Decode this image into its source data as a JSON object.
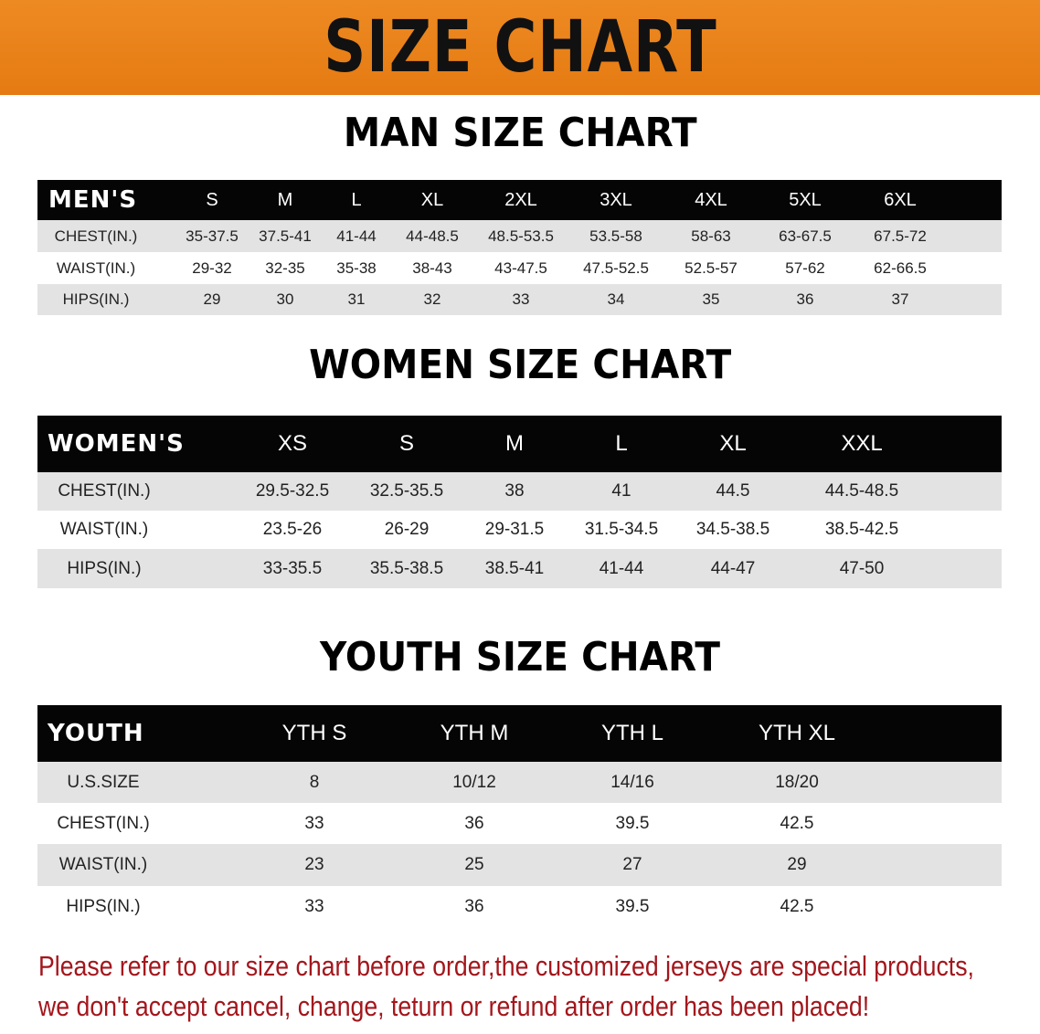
{
  "banner": {
    "title": "SIZE CHART",
    "color": "#e8801a"
  },
  "notice": {
    "line1": "Please refer to our size chart before order,the customized jerseys are special products,",
    "line2": "we don't accept cancel, change, teturn or refund after order has been placed!",
    "color": "#a3161c"
  },
  "tables": [
    {
      "title": "MAN SIZE CHART",
      "header_label": "MEN'S",
      "columns": [
        "S",
        "M",
        "L",
        "XL",
        "2XL",
        "3XL",
        "4XL",
        "5XL",
        "6XL"
      ],
      "rows": [
        {
          "label": "CHEST(IN.)",
          "values": [
            "35-37.5",
            "37.5-41",
            "41-44",
            "44-48.5",
            "48.5-53.5",
            "53.5-58",
            "58-63",
            "63-67.5",
            "67.5-72"
          ]
        },
        {
          "label": "WAIST(IN.)",
          "values": [
            "29-32",
            "32-35",
            "35-38",
            "38-43",
            "43-47.5",
            "47.5-52.5",
            "52.5-57",
            "57-62",
            "62-66.5"
          ]
        },
        {
          "label": "HIPS(IN.)",
          "values": [
            "29",
            "30",
            "31",
            "32",
            "33",
            "34",
            "35",
            "36",
            "37"
          ]
        }
      ]
    },
    {
      "title": "WOMEN SIZE CHART",
      "header_label": "WOMEN'S",
      "columns": [
        "XS",
        "S",
        "M",
        "L",
        "XL",
        "XXL"
      ],
      "rows": [
        {
          "label": "CHEST(IN.)",
          "values": [
            "29.5-32.5",
            "32.5-35.5",
            "38",
            "41",
            "44.5",
            "44.5-48.5"
          ]
        },
        {
          "label": "WAIST(IN.)",
          "values": [
            "23.5-26",
            "26-29",
            "29-31.5",
            "31.5-34.5",
            "34.5-38.5",
            "38.5-42.5"
          ]
        },
        {
          "label": "HIPS(IN.)",
          "values": [
            "33-35.5",
            "35.5-38.5",
            "38.5-41",
            "41-44",
            "44-47",
            "47-50"
          ]
        }
      ]
    },
    {
      "title": "YOUTH SIZE CHART",
      "header_label": "YOUTH",
      "columns": [
        "YTH S",
        "YTH M",
        "YTH L",
        "YTH XL"
      ],
      "rows": [
        {
          "label": "U.S.SIZE",
          "values": [
            "8",
            "10/12",
            "14/16",
            "18/20"
          ]
        },
        {
          "label": "CHEST(IN.)",
          "values": [
            "33",
            "36",
            "39.5",
            "42.5"
          ]
        },
        {
          "label": "WAIST(IN.)",
          "values": [
            "23",
            "25",
            "27",
            "29"
          ]
        },
        {
          "label": "HIPS(IN.)",
          "values": [
            "33",
            "36",
            "39.5",
            "42.5"
          ]
        }
      ]
    }
  ]
}
